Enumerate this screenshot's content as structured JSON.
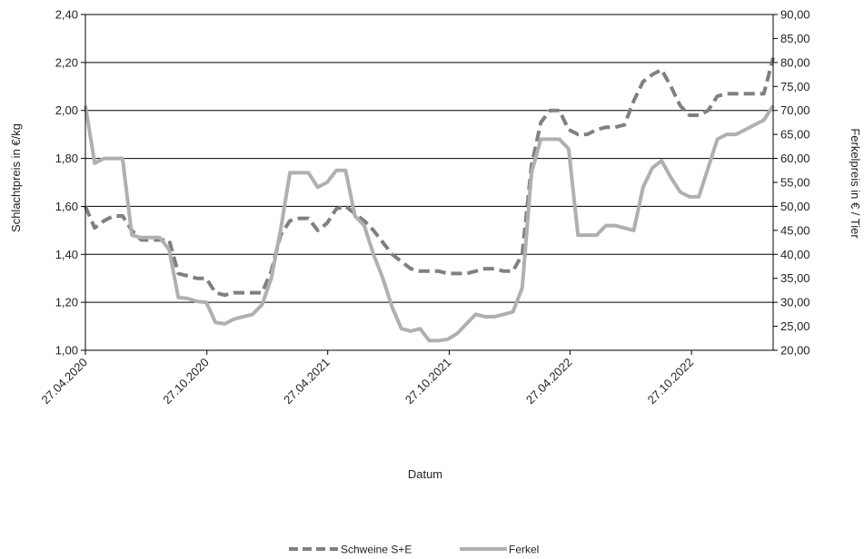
{
  "chart_data": {
    "type": "line",
    "xlabel": "Datum",
    "ylabel_left": "Schlachtpreis in €/kg",
    "ylabel_right": "Ferkelpreis in € / Tier",
    "x_tick_labels": [
      "27.04.2020",
      "27.10.2020",
      "27.04.2021",
      "27.10.2021",
      "27.04.2022",
      "27.10.2022"
    ],
    "ylim_left": [
      1.0,
      2.4
    ],
    "ylim_right": [
      20,
      90
    ],
    "y_ticks_left": [
      "1,00",
      "1,20",
      "1,40",
      "1,60",
      "1,80",
      "2,00",
      "2,20",
      "2,40"
    ],
    "y_ticks_right": [
      "20,00",
      "25,00",
      "30,00",
      "35,00",
      "40,00",
      "45,00",
      "50,00",
      "55,00",
      "60,00",
      "65,00",
      "70,00",
      "75,00",
      "80,00",
      "85,00",
      "90,00"
    ],
    "grid": "horizontal",
    "legend_position": "bottom",
    "series": [
      {
        "name": "Schweine S+E",
        "axis": "left",
        "color": "#808080",
        "style": "dashed",
        "points": [
          [
            "27.04.2020",
            1.6
          ],
          [
            "11.05.2020",
            1.51
          ],
          [
            "25.05.2020",
            1.54
          ],
          [
            "08.06.2020",
            1.56
          ],
          [
            "22.06.2020",
            1.56
          ],
          [
            "06.07.2020",
            1.5
          ],
          [
            "20.07.2020",
            1.46
          ],
          [
            "03.08.2020",
            1.46
          ],
          [
            "17.08.2020",
            1.46
          ],
          [
            "31.08.2020",
            1.46
          ],
          [
            "14.09.2020",
            1.32
          ],
          [
            "28.09.2020",
            1.31
          ],
          [
            "12.10.2020",
            1.3
          ],
          [
            "26.10.2020",
            1.3
          ],
          [
            "09.11.2020",
            1.24
          ],
          [
            "23.11.2020",
            1.23
          ],
          [
            "07.12.2020",
            1.24
          ],
          [
            "21.12.2020",
            1.24
          ],
          [
            "04.01.2021",
            1.24
          ],
          [
            "18.01.2021",
            1.24
          ],
          [
            "01.02.2021",
            1.33
          ],
          [
            "15.02.2021",
            1.48
          ],
          [
            "01.03.2021",
            1.54
          ],
          [
            "15.03.2021",
            1.55
          ],
          [
            "29.03.2021",
            1.55
          ],
          [
            "12.04.2021",
            1.5
          ],
          [
            "26.04.2021",
            1.53
          ],
          [
            "10.05.2021",
            1.59
          ],
          [
            "24.05.2021",
            1.6
          ],
          [
            "07.06.2021",
            1.57
          ],
          [
            "21.06.2021",
            1.54
          ],
          [
            "05.07.2021",
            1.5
          ],
          [
            "19.07.2021",
            1.45
          ],
          [
            "02.08.2021",
            1.4
          ],
          [
            "16.08.2021",
            1.37
          ],
          [
            "30.08.2021",
            1.34
          ],
          [
            "13.09.2021",
            1.33
          ],
          [
            "27.09.2021",
            1.33
          ],
          [
            "11.10.2021",
            1.33
          ],
          [
            "25.10.2021",
            1.32
          ],
          [
            "08.11.2021",
            1.32
          ],
          [
            "22.11.2021",
            1.32
          ],
          [
            "06.12.2021",
            1.33
          ],
          [
            "20.12.2021",
            1.34
          ],
          [
            "03.01.2022",
            1.34
          ],
          [
            "17.01.2022",
            1.33
          ],
          [
            "31.01.2022",
            1.33
          ],
          [
            "14.02.2022",
            1.4
          ],
          [
            "28.02.2022",
            1.77
          ],
          [
            "14.03.2022",
            1.95
          ],
          [
            "28.03.2022",
            2.0
          ],
          [
            "11.04.2022",
            2.0
          ],
          [
            "25.04.2022",
            1.92
          ],
          [
            "09.05.2022",
            1.9
          ],
          [
            "23.05.2022",
            1.9
          ],
          [
            "06.06.2022",
            1.92
          ],
          [
            "20.06.2022",
            1.93
          ],
          [
            "04.07.2022",
            1.93
          ],
          [
            "18.07.2022",
            1.94
          ],
          [
            "01.08.2022",
            2.04
          ],
          [
            "15.08.2022",
            2.12
          ],
          [
            "29.08.2022",
            2.15
          ],
          [
            "12.09.2022",
            2.17
          ],
          [
            "26.09.2022",
            2.1
          ],
          [
            "10.10.2022",
            2.02
          ],
          [
            "24.10.2022",
            1.98
          ],
          [
            "07.11.2022",
            1.98
          ],
          [
            "21.11.2022",
            2.0
          ],
          [
            "05.12.2022",
            2.06
          ],
          [
            "19.12.2022",
            2.07
          ],
          [
            "02.01.2023",
            2.07
          ],
          [
            "16.01.2023",
            2.07
          ],
          [
            "30.01.2023",
            2.07
          ],
          [
            "13.02.2023",
            2.07
          ],
          [
            "27.02.2023",
            2.22
          ]
        ]
      },
      {
        "name": "Ferkel",
        "axis": "right",
        "color": "#b0b0b0",
        "style": "solid",
        "points": [
          [
            "27.04.2020",
            71
          ],
          [
            "11.05.2020",
            59
          ],
          [
            "25.05.2020",
            60
          ],
          [
            "08.06.2020",
            60
          ],
          [
            "22.06.2020",
            60
          ],
          [
            "06.07.2020",
            44
          ],
          [
            "20.07.2020",
            43.5
          ],
          [
            "03.08.2020",
            43.5
          ],
          [
            "17.08.2020",
            43.5
          ],
          [
            "31.08.2020",
            41
          ],
          [
            "14.09.2020",
            31
          ],
          [
            "28.09.2020",
            30.8
          ],
          [
            "12.10.2020",
            30.2
          ],
          [
            "26.10.2020",
            30
          ],
          [
            "09.11.2020",
            25.8
          ],
          [
            "23.11.2020",
            25.5
          ],
          [
            "07.12.2020",
            26.5
          ],
          [
            "21.12.2020",
            27
          ],
          [
            "04.01.2021",
            27.5
          ],
          [
            "18.01.2021",
            29.5
          ],
          [
            "01.02.2021",
            35
          ],
          [
            "15.02.2021",
            45
          ],
          [
            "01.03.2021",
            57
          ],
          [
            "15.03.2021",
            57
          ],
          [
            "29.03.2021",
            57
          ],
          [
            "12.04.2021",
            54
          ],
          [
            "26.04.2021",
            55
          ],
          [
            "10.05.2021",
            57.5
          ],
          [
            "24.05.2021",
            57.5
          ],
          [
            "07.06.2021",
            48
          ],
          [
            "21.06.2021",
            46
          ],
          [
            "05.07.2021",
            40
          ],
          [
            "19.07.2021",
            35
          ],
          [
            "02.08.2021",
            29
          ],
          [
            "16.08.2021",
            24.5
          ],
          [
            "30.08.2021",
            24
          ],
          [
            "13.09.2021",
            24.5
          ],
          [
            "27.09.2021",
            22
          ],
          [
            "11.10.2021",
            22
          ],
          [
            "25.10.2021",
            22.3
          ],
          [
            "08.11.2021",
            23.5
          ],
          [
            "22.11.2021",
            25.5
          ],
          [
            "06.12.2021",
            27.5
          ],
          [
            "20.12.2021",
            27
          ],
          [
            "03.01.2022",
            27
          ],
          [
            "17.01.2022",
            27.5
          ],
          [
            "31.01.2022",
            28
          ],
          [
            "14.02.2022",
            33
          ],
          [
            "28.02.2022",
            57
          ],
          [
            "14.03.2022",
            64
          ],
          [
            "28.03.2022",
            64
          ],
          [
            "11.04.2022",
            64
          ],
          [
            "25.04.2022",
            62
          ],
          [
            "09.05.2022",
            44
          ],
          [
            "23.05.2022",
            44
          ],
          [
            "06.06.2022",
            44
          ],
          [
            "20.06.2022",
            46
          ],
          [
            "04.07.2022",
            46
          ],
          [
            "18.07.2022",
            45.5
          ],
          [
            "01.08.2022",
            45
          ],
          [
            "15.08.2022",
            54
          ],
          [
            "29.08.2022",
            58
          ],
          [
            "12.09.2022",
            59.5
          ],
          [
            "26.09.2022",
            56
          ],
          [
            "10.10.2022",
            53
          ],
          [
            "24.10.2022",
            52
          ],
          [
            "07.11.2022",
            52
          ],
          [
            "21.11.2022",
            58
          ],
          [
            "05.12.2022",
            64
          ],
          [
            "19.12.2022",
            65
          ],
          [
            "02.01.2023",
            65
          ],
          [
            "16.01.2023",
            66
          ],
          [
            "30.01.2023",
            67
          ],
          [
            "13.02.2023",
            68
          ],
          [
            "27.02.2023",
            71
          ]
        ]
      }
    ]
  }
}
